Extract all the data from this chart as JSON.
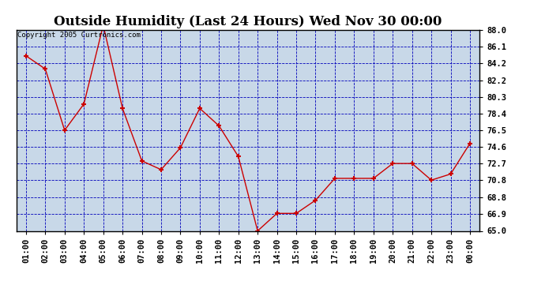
{
  "title": "Outside Humidity (Last 24 Hours) Wed Nov 30 00:00",
  "copyright": "Copyright 2005 Curtronics.com",
  "x_labels": [
    "01:00",
    "02:00",
    "03:00",
    "04:00",
    "05:00",
    "06:00",
    "07:00",
    "08:00",
    "09:00",
    "10:00",
    "11:00",
    "12:00",
    "13:00",
    "14:00",
    "15:00",
    "16:00",
    "17:00",
    "18:00",
    "19:00",
    "20:00",
    "21:00",
    "22:00",
    "23:00",
    "00:00"
  ],
  "y_values": [
    85.0,
    83.5,
    76.5,
    79.5,
    88.5,
    79.0,
    73.0,
    72.0,
    74.5,
    79.0,
    77.0,
    73.5,
    65.0,
    67.0,
    67.0,
    68.5,
    71.0,
    71.0,
    71.0,
    72.7,
    72.7,
    70.8,
    71.5,
    75.0
  ],
  "line_color": "#cc0000",
  "marker_color": "#cc0000",
  "fig_bg_color": "#ffffff",
  "plot_bg_color": "#c8d8e8",
  "grid_color": "#0000bb",
  "title_color": "#000000",
  "y_min": 65.0,
  "y_max": 88.0,
  "y_ticks": [
    65.0,
    66.9,
    68.8,
    70.8,
    72.7,
    74.6,
    76.5,
    78.4,
    80.3,
    82.2,
    84.2,
    86.1,
    88.0
  ],
  "title_fontsize": 12,
  "tick_fontsize": 7.5,
  "copyright_fontsize": 6.5
}
